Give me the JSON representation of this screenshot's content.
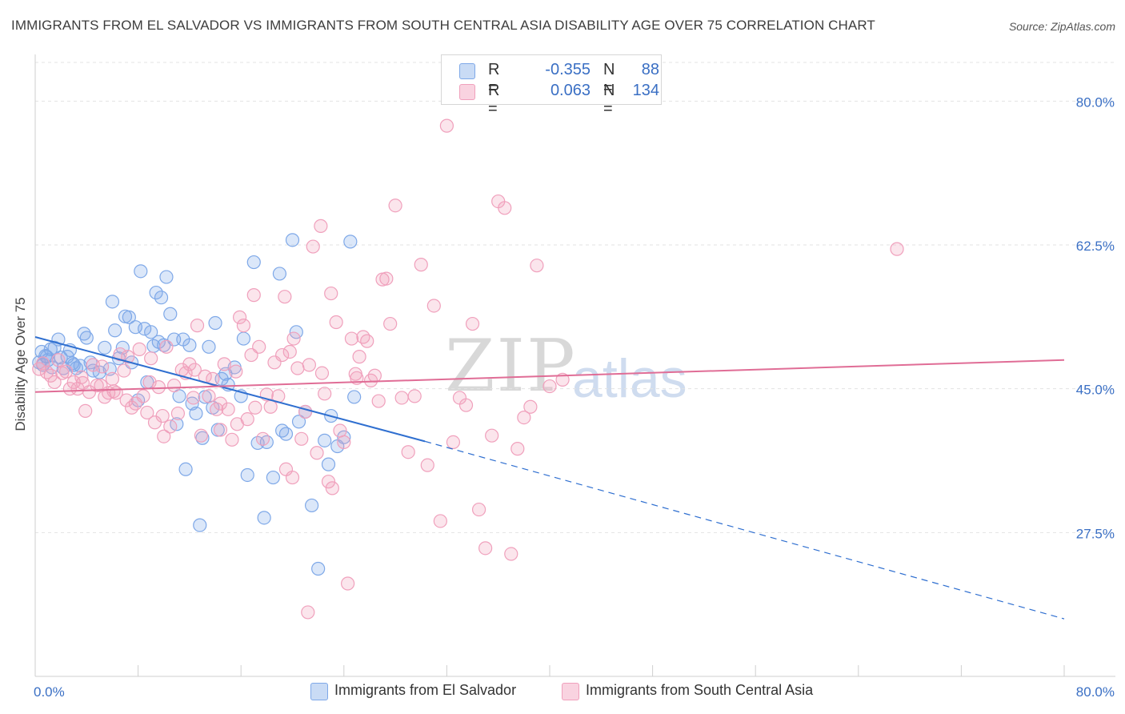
{
  "title": "IMMIGRANTS FROM EL SALVADOR VS IMMIGRANTS FROM SOUTH CENTRAL ASIA DISABILITY AGE OVER 75 CORRELATION CHART",
  "source": "Source: ZipAtlas.com",
  "watermark": {
    "zip": "ZIP",
    "atlas": "atlas"
  },
  "legend": {
    "r_label": "R =",
    "n_label": "N =",
    "rows": [
      {
        "r": "-0.355",
        "n": "88",
        "color": "#7ea8e8"
      },
      {
        "r": "0.063",
        "n": "134",
        "color": "#f0a0bc"
      }
    ]
  },
  "bottom_legend": [
    {
      "label": "Immigrants from El Salvador",
      "color": "#7ea8e8"
    },
    {
      "label": "Immigrants from South Central Asia",
      "color": "#f0a0bc"
    }
  ],
  "chart_data": {
    "type": "scatter",
    "title": "IMMIGRANTS FROM EL SALVADOR VS IMMIGRANTS FROM SOUTH CENTRAL ASIA DISABILITY AGE OVER 75 CORRELATION CHART",
    "xlabel": "",
    "ylabel": "Disability Age Over 75",
    "xlim": [
      0,
      80
    ],
    "ylim": [
      10,
      85
    ],
    "x_ticks": [
      "0.0%",
      "80.0%"
    ],
    "y_ticks": [
      {
        "value": 80.0,
        "label": "80.0%"
      },
      {
        "value": 62.5,
        "label": "62.5%"
      },
      {
        "value": 45.0,
        "label": "45.0%"
      },
      {
        "value": 27.5,
        "label": "27.5%"
      }
    ],
    "grid": true,
    "legend_position": "top-center",
    "series": [
      {
        "name": "Immigrants from El Salvador",
        "color": "#7ea8e8",
        "line_color": "#2f6fd0",
        "trend": {
          "x0": 0,
          "y0": 51.3,
          "x1": 30.3,
          "y1": 38.6,
          "dash_to_x": 80,
          "dash_to_y": 17.0
        },
        "points": [
          [
            0.3,
            48.2
          ],
          [
            0.5,
            49.5
          ],
          [
            0.6,
            47.9
          ],
          [
            0.8,
            49.0
          ],
          [
            1.0,
            48.5
          ],
          [
            1.2,
            49.8
          ],
          [
            1.5,
            50.0
          ],
          [
            1.8,
            51.0
          ],
          [
            2.0,
            48.8
          ],
          [
            2.2,
            47.5
          ],
          [
            2.5,
            48.9
          ],
          [
            2.7,
            49.7
          ],
          [
            3.0,
            47.9
          ],
          [
            3.2,
            47.5
          ],
          [
            3.5,
            47.8
          ],
          [
            3.8,
            51.7
          ],
          [
            4.0,
            51.2
          ],
          [
            4.3,
            48.2
          ],
          [
            4.5,
            47.2
          ],
          [
            5.0,
            47.0
          ],
          [
            5.4,
            50.0
          ],
          [
            5.8,
            47.4
          ],
          [
            6.0,
            55.6
          ],
          [
            6.2,
            52.1
          ],
          [
            6.5,
            48.7
          ],
          [
            6.8,
            50.0
          ],
          [
            7.0,
            53.8
          ],
          [
            7.3,
            53.7
          ],
          [
            7.5,
            48.2
          ],
          [
            7.8,
            52.5
          ],
          [
            8.0,
            43.6
          ],
          [
            8.2,
            59.3
          ],
          [
            8.5,
            52.3
          ],
          [
            8.7,
            45.8
          ],
          [
            9.0,
            51.9
          ],
          [
            9.2,
            50.2
          ],
          [
            9.4,
            56.7
          ],
          [
            9.6,
            50.7
          ],
          [
            9.8,
            56.1
          ],
          [
            10.0,
            50.3
          ],
          [
            10.2,
            58.6
          ],
          [
            10.5,
            54.1
          ],
          [
            10.8,
            51.0
          ],
          [
            11.0,
            40.7
          ],
          [
            11.2,
            44.1
          ],
          [
            11.5,
            51.0
          ],
          [
            11.7,
            35.2
          ],
          [
            12.0,
            50.3
          ],
          [
            12.2,
            43.2
          ],
          [
            12.5,
            42.0
          ],
          [
            12.8,
            28.4
          ],
          [
            13.0,
            39.0
          ],
          [
            13.2,
            44.0
          ],
          [
            13.5,
            50.1
          ],
          [
            13.8,
            42.7
          ],
          [
            14.0,
            53.0
          ],
          [
            14.2,
            40.0
          ],
          [
            14.5,
            46.2
          ],
          [
            14.8,
            46.8
          ],
          [
            15.0,
            45.5
          ],
          [
            15.5,
            47.6
          ],
          [
            16.0,
            44.1
          ],
          [
            16.2,
            51.1
          ],
          [
            16.5,
            34.5
          ],
          [
            17.0,
            60.4
          ],
          [
            17.3,
            38.4
          ],
          [
            17.8,
            29.3
          ],
          [
            18.0,
            38.5
          ],
          [
            18.5,
            34.2
          ],
          [
            19.0,
            59.0
          ],
          [
            19.2,
            39.9
          ],
          [
            19.5,
            39.5
          ],
          [
            20.0,
            63.1
          ],
          [
            20.3,
            51.9
          ],
          [
            20.5,
            41.0
          ],
          [
            21.0,
            42.2
          ],
          [
            21.5,
            30.8
          ],
          [
            22.0,
            23.1
          ],
          [
            22.5,
            38.7
          ],
          [
            22.8,
            35.8
          ],
          [
            23.0,
            41.7
          ],
          [
            23.5,
            38.0
          ],
          [
            24.0,
            39.1
          ],
          [
            24.5,
            62.9
          ],
          [
            24.8,
            44.0
          ],
          [
            2.9,
            48.1
          ],
          [
            1.3,
            47.6
          ],
          [
            0.9,
            48.9
          ]
        ]
      },
      {
        "name": "Immigrants from South Central Asia",
        "color": "#f0a0bc",
        "line_color": "#e06d96",
        "trend": {
          "x0": 0,
          "y0": 44.6,
          "x1": 80,
          "y1": 48.5
        },
        "points": [
          [
            0.3,
            47.4
          ],
          [
            0.6,
            48.1
          ],
          [
            0.9,
            47.0
          ],
          [
            1.2,
            46.6
          ],
          [
            1.5,
            45.8
          ],
          [
            1.8,
            48.5
          ],
          [
            2.1,
            46.9
          ],
          [
            2.4,
            47.1
          ],
          [
            2.7,
            45.0
          ],
          [
            3.0,
            45.8
          ],
          [
            3.3,
            45.0
          ],
          [
            3.6,
            46.4
          ],
          [
            3.9,
            42.3
          ],
          [
            4.2,
            44.6
          ],
          [
            4.5,
            47.9
          ],
          [
            4.8,
            45.4
          ],
          [
            5.1,
            45.4
          ],
          [
            5.4,
            44.0
          ],
          [
            5.7,
            44.5
          ],
          [
            6.0,
            46.2
          ],
          [
            6.3,
            44.5
          ],
          [
            6.6,
            49.2
          ],
          [
            6.9,
            47.2
          ],
          [
            7.2,
            48.9
          ],
          [
            7.5,
            42.7
          ],
          [
            7.8,
            43.2
          ],
          [
            8.1,
            49.8
          ],
          [
            8.4,
            44.1
          ],
          [
            8.7,
            42.1
          ],
          [
            9.0,
            48.7
          ],
          [
            9.3,
            40.9
          ],
          [
            9.6,
            45.2
          ],
          [
            9.9,
            41.7
          ],
          [
            10.2,
            50.1
          ],
          [
            10.5,
            40.4
          ],
          [
            10.8,
            45.4
          ],
          [
            11.1,
            42.0
          ],
          [
            11.4,
            47.3
          ],
          [
            11.7,
            46.9
          ],
          [
            12.0,
            48.0
          ],
          [
            12.3,
            43.9
          ],
          [
            12.6,
            52.7
          ],
          [
            12.9,
            39.3
          ],
          [
            13.2,
            46.5
          ],
          [
            13.5,
            44.1
          ],
          [
            13.8,
            46.2
          ],
          [
            14.1,
            42.5
          ],
          [
            14.4,
            43.2
          ],
          [
            14.7,
            48.0
          ],
          [
            15.0,
            42.5
          ],
          [
            15.3,
            38.8
          ],
          [
            15.6,
            47.1
          ],
          [
            15.9,
            53.7
          ],
          [
            16.2,
            52.7
          ],
          [
            16.5,
            41.3
          ],
          [
            16.8,
            49.1
          ],
          [
            17.1,
            42.7
          ],
          [
            17.4,
            50.1
          ],
          [
            17.7,
            38.9
          ],
          [
            18.0,
            44.3
          ],
          [
            18.3,
            42.8
          ],
          [
            18.6,
            48.2
          ],
          [
            18.9,
            44.1
          ],
          [
            19.2,
            49.1
          ],
          [
            19.5,
            35.2
          ],
          [
            19.8,
            49.5
          ],
          [
            20.1,
            51.1
          ],
          [
            20.4,
            47.5
          ],
          [
            20.7,
            38.9
          ],
          [
            21.0,
            42.2
          ],
          [
            21.3,
            47.9
          ],
          [
            21.6,
            62.3
          ],
          [
            21.9,
            37.2
          ],
          [
            22.2,
            64.8
          ],
          [
            22.5,
            44.4
          ],
          [
            22.8,
            33.7
          ],
          [
            23.1,
            32.9
          ],
          [
            23.4,
            53.1
          ],
          [
            23.7,
            39.9
          ],
          [
            24.0,
            38.5
          ],
          [
            24.3,
            21.3
          ],
          [
            24.6,
            51.1
          ],
          [
            24.9,
            46.8
          ],
          [
            25.2,
            48.9
          ],
          [
            25.5,
            51.3
          ],
          [
            25.8,
            50.8
          ],
          [
            26.1,
            46.0
          ],
          [
            26.4,
            46.6
          ],
          [
            26.7,
            43.5
          ],
          [
            27.0,
            58.3
          ],
          [
            27.3,
            58.4
          ],
          [
            27.6,
            52.9
          ],
          [
            28.0,
            67.3
          ],
          [
            28.5,
            43.9
          ],
          [
            29.0,
            37.3
          ],
          [
            29.5,
            44.1
          ],
          [
            30.0,
            60.1
          ],
          [
            30.5,
            35.7
          ],
          [
            31.0,
            55.1
          ],
          [
            31.5,
            28.9
          ],
          [
            32.0,
            77.0
          ],
          [
            32.5,
            38.5
          ],
          [
            33.0,
            43.9
          ],
          [
            33.5,
            43.0
          ],
          [
            34.0,
            52.9
          ],
          [
            34.5,
            30.3
          ],
          [
            35.0,
            25.6
          ],
          [
            35.5,
            39.3
          ],
          [
            36.0,
            67.8
          ],
          [
            36.5,
            67.0
          ],
          [
            37.0,
            24.9
          ],
          [
            37.5,
            37.7
          ],
          [
            38.0,
            41.5
          ],
          [
            38.5,
            42.8
          ],
          [
            39.0,
            60.0
          ],
          [
            40.0,
            45.3
          ],
          [
            41.0,
            46.1
          ],
          [
            17.0,
            56.4
          ],
          [
            20.0,
            34.2
          ],
          [
            21.2,
            17.8
          ],
          [
            19.4,
            56.2
          ],
          [
            25.0,
            46.3
          ],
          [
            22.3,
            46.9
          ],
          [
            23.0,
            56.6
          ],
          [
            15.7,
            40.7
          ],
          [
            12.4,
            47.3
          ],
          [
            14.4,
            40.0
          ],
          [
            10.0,
            39.2
          ],
          [
            8.9,
            45.8
          ],
          [
            7.1,
            43.6
          ],
          [
            6.1,
            44.7
          ],
          [
            5.2,
            47.7
          ],
          [
            3.7,
            45.7
          ],
          [
            67.0,
            62.0
          ]
        ]
      }
    ]
  }
}
